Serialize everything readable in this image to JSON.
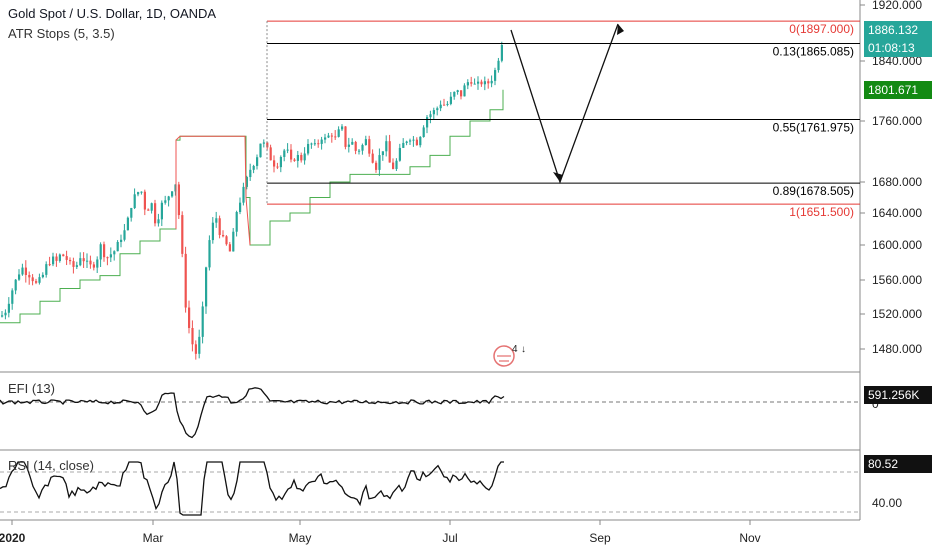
{
  "header": {
    "title": "Gold Spot / U.S. Dollar, 1D, OANDA",
    "indicator": "ATR Stops (5, 3.5)"
  },
  "price_axis": {
    "ticks": [
      "1920.000",
      "1840.000",
      "1760.000",
      "1680.000",
      "1640.000",
      "1600.000",
      "1560.000",
      "1520.000",
      "1480.000"
    ],
    "badges": {
      "last_price": "1886.132",
      "countdown": "01:08:13",
      "atr_stop": "1801.671"
    }
  },
  "time_axis": {
    "ticks": [
      "2020",
      "Mar",
      "May",
      "Jul",
      "Sep",
      "Nov"
    ]
  },
  "fib_levels": [
    {
      "ratio": "0",
      "label": "0(1897.000)",
      "price": 1897.0,
      "color": "#e53935"
    },
    {
      "ratio": "0.13",
      "label": "0.13(1865.085)",
      "price": 1865.085,
      "color": "#000000"
    },
    {
      "ratio": "0.55",
      "label": "0.55(1761.975)",
      "price": 1761.975,
      "color": "#000000"
    },
    {
      "ratio": "0.89",
      "label": "0.89(1678.505)",
      "price": 1678.505,
      "color": "#000000"
    },
    {
      "ratio": "1",
      "label": "1(1651.500)",
      "price": 1651.5,
      "color": "#e53935"
    }
  ],
  "efi": {
    "label": "EFI (13)",
    "value": "591.256K",
    "zero_tick": "0"
  },
  "rsi": {
    "label": "RSI (14, close)",
    "value": "80.52",
    "tick": "40.00"
  },
  "colors": {
    "up": "#26a69a",
    "down": "#ef5350",
    "atr_line_up": "#4caf50",
    "atr_line_down": "#ef5350",
    "badge_green": "#26a69a",
    "badge_darkgreen": "#138a13"
  },
  "chart_data": {
    "type": "candlestick",
    "title": "Gold Spot / U.S. Dollar, 1D, OANDA",
    "x_ticks": [
      "2020",
      "Mar",
      "May",
      "Jul",
      "Sep",
      "Nov"
    ],
    "y_ticks": [
      1480,
      1520,
      1560,
      1600,
      1640,
      1680,
      1760,
      1840,
      1920
    ],
    "close_path": [
      [
        0,
        1517
      ],
      [
        5,
        1525
      ],
      [
        10,
        1545
      ],
      [
        15,
        1560
      ],
      [
        20,
        1575
      ],
      [
        25,
        1570
      ],
      [
        30,
        1565
      ],
      [
        35,
        1555
      ],
      [
        40,
        1560
      ],
      [
        45,
        1575
      ],
      [
        50,
        1585
      ],
      [
        55,
        1580
      ],
      [
        60,
        1590
      ],
      [
        65,
        1585
      ],
      [
        70,
        1575
      ],
      [
        75,
        1575
      ],
      [
        80,
        1590
      ],
      [
        85,
        1578
      ],
      [
        90,
        1575
      ],
      [
        95,
        1582
      ],
      [
        100,
        1600
      ],
      [
        105,
        1585
      ],
      [
        110,
        1590
      ],
      [
        115,
        1595
      ],
      [
        120,
        1610
      ],
      [
        125,
        1620
      ],
      [
        130,
        1650
      ],
      [
        135,
        1665
      ],
      [
        140,
        1670
      ],
      [
        145,
        1640
      ],
      [
        150,
        1655
      ],
      [
        155,
        1625
      ],
      [
        160,
        1650
      ],
      [
        165,
        1655
      ],
      [
        170,
        1670
      ],
      [
        175,
        1680
      ],
      [
        180,
        1605
      ],
      [
        185,
        1525
      ],
      [
        190,
        1490
      ],
      [
        195,
        1475
      ],
      [
        200,
        1500
      ],
      [
        205,
        1575
      ],
      [
        210,
        1620
      ],
      [
        215,
        1635
      ],
      [
        220,
        1610
      ],
      [
        225,
        1600
      ],
      [
        230,
        1590
      ],
      [
        235,
        1640
      ],
      [
        240,
        1660
      ],
      [
        245,
        1680
      ],
      [
        250,
        1700
      ],
      [
        255,
        1710
      ],
      [
        260,
        1735
      ],
      [
        265,
        1725
      ],
      [
        270,
        1710
      ],
      [
        275,
        1700
      ],
      [
        280,
        1715
      ],
      [
        285,
        1725
      ],
      [
        290,
        1705
      ],
      [
        295,
        1715
      ],
      [
        300,
        1710
      ],
      [
        305,
        1725
      ],
      [
        310,
        1730
      ],
      [
        315,
        1725
      ],
      [
        320,
        1740
      ],
      [
        325,
        1735
      ],
      [
        330,
        1745
      ],
      [
        335,
        1735
      ],
      [
        340,
        1755
      ],
      [
        345,
        1725
      ],
      [
        350,
        1735
      ],
      [
        355,
        1720
      ],
      [
        360,
        1725
      ],
      [
        365,
        1735
      ],
      [
        370,
        1715
      ],
      [
        375,
        1700
      ],
      [
        380,
        1720
      ],
      [
        385,
        1730
      ],
      [
        390,
        1695
      ],
      [
        395,
        1705
      ],
      [
        400,
        1725
      ],
      [
        405,
        1735
      ],
      [
        410,
        1740
      ],
      [
        415,
        1730
      ],
      [
        420,
        1745
      ],
      [
        425,
        1765
      ],
      [
        430,
        1770
      ],
      [
        435,
        1775
      ],
      [
        440,
        1785
      ],
      [
        445,
        1780
      ],
      [
        450,
        1790
      ],
      [
        455,
        1800
      ],
      [
        460,
        1795
      ],
      [
        465,
        1810
      ],
      [
        470,
        1815
      ],
      [
        475,
        1805
      ],
      [
        480,
        1812
      ],
      [
        485,
        1808
      ],
      [
        490,
        1815
      ],
      [
        495,
        1830
      ],
      [
        500,
        1860
      ],
      [
        503,
        1886
      ]
    ],
    "atr_stops": [
      [
        0,
        1510
      ],
      [
        20,
        1520
      ],
      [
        40,
        1535
      ],
      [
        60,
        1550
      ],
      [
        80,
        1560
      ],
      [
        100,
        1565
      ],
      [
        120,
        1590
      ],
      [
        140,
        1605
      ],
      [
        160,
        1620
      ],
      [
        175,
        1620
      ],
      [
        176,
        1735
      ],
      [
        180,
        1740
      ],
      [
        200,
        1740
      ],
      [
        220,
        1740
      ],
      [
        245,
        1740
      ],
      [
        246,
        1660
      ],
      [
        250,
        1600
      ],
      [
        270,
        1630
      ],
      [
        290,
        1640
      ],
      [
        310,
        1660
      ],
      [
        330,
        1680
      ],
      [
        350,
        1690
      ],
      [
        370,
        1690
      ],
      [
        390,
        1690
      ],
      [
        410,
        1700
      ],
      [
        430,
        1715
      ],
      [
        450,
        1740
      ],
      [
        470,
        1760
      ],
      [
        490,
        1775
      ],
      [
        503,
        1801.671
      ]
    ],
    "fib_levels": [
      1897.0,
      1865.085,
      1761.975,
      1678.505,
      1651.5
    ],
    "ylim": [
      1455,
      1930
    ]
  }
}
